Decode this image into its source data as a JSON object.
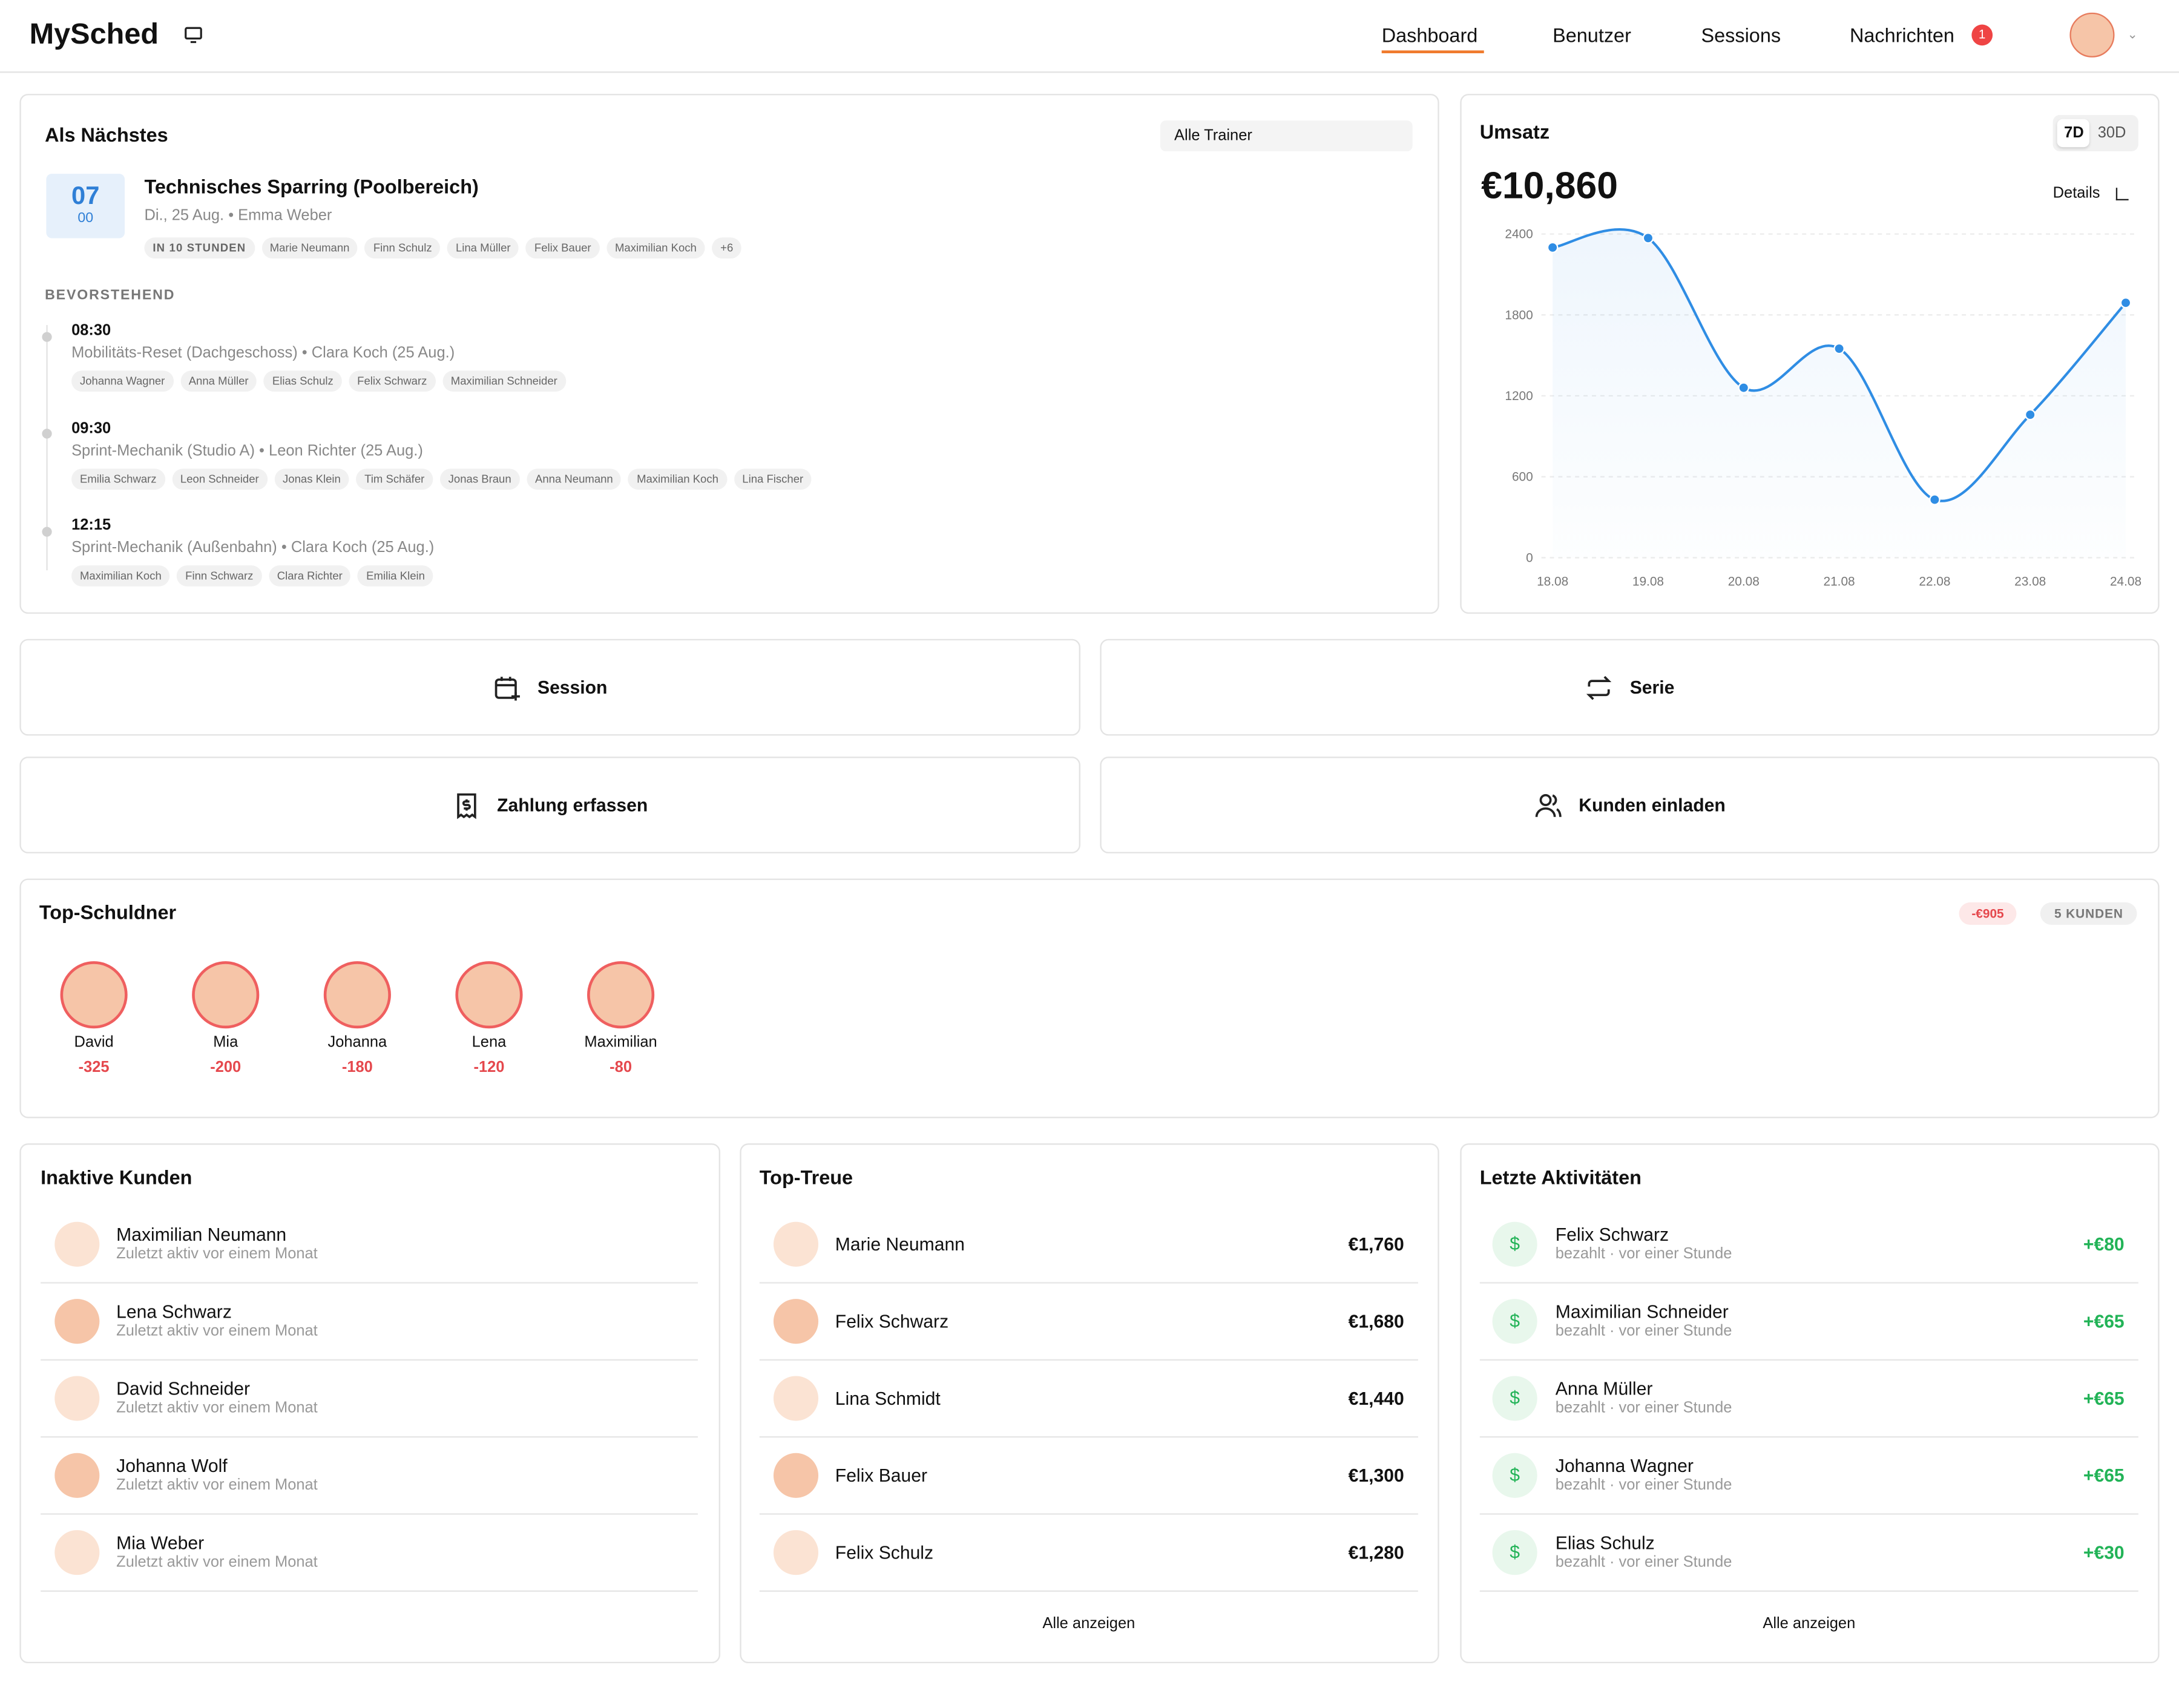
{
  "header": {
    "logo": "MySched",
    "nav": [
      "Dashboard",
      "Benutzer",
      "Sessions",
      "Nachrichten"
    ],
    "badge": "1"
  },
  "next": {
    "title": "Als Nächstes",
    "filter": "Alle Trainer",
    "day": "07",
    "month": "00",
    "session": "Technisches Sparring (Poolbereich)",
    "meta": "Di., 25 Aug. • Emma Weber",
    "when": "IN 10 STUNDEN",
    "tags": [
      "Marie Neumann",
      "Finn Schulz",
      "Lina Müller",
      "Felix Bauer",
      "Maximilian Koch",
      "+6"
    ],
    "upcoming_label": "BEVORSTEHEND",
    "upcoming": [
      {
        "time": "08:30",
        "desc": "Mobilitäts-Reset (Dachgeschoss) • Clara Koch (25 Aug.)",
        "tags": [
          "Johanna Wagner",
          "Anna Müller",
          "Elias Schulz",
          "Felix Schwarz",
          "Maximilian Schneider"
        ]
      },
      {
        "time": "09:30",
        "desc": "Sprint-Mechanik (Studio A) • Leon Richter (25 Aug.)",
        "tags": [
          "Emilia Schwarz",
          "Leon Schneider",
          "Jonas Klein",
          "Tim Schäfer",
          "Jonas Braun",
          "Anna Neumann",
          "Maximilian Koch",
          "Lina Fischer"
        ]
      },
      {
        "time": "12:15",
        "desc": "Sprint-Mechanik (Außenbahn) • Clara Koch (25 Aug.)",
        "tags": [
          "Maximilian Koch",
          "Finn Schwarz",
          "Clara Richter",
          "Emilia Klein"
        ]
      }
    ]
  },
  "revenue": {
    "ranges": [
      "7D",
      "30D"
    ],
    "total": "€10,860",
    "details": "Details"
  },
  "chart_data": {
    "type": "line",
    "title": "Umsatz",
    "categories": [
      "18.08",
      "19.08",
      "20.08",
      "21.08",
      "22.08",
      "23.08",
      "24.08"
    ],
    "values": [
      2300,
      2370,
      1260,
      1550,
      430,
      1060,
      1890
    ],
    "color": "#2f8de4",
    "ylim": [
      0,
      2400
    ],
    "yticks": [
      0,
      600,
      1200,
      1800,
      2400
    ],
    "grid": true
  },
  "actions": [
    "Session",
    "Serie",
    "Zahlung erfassen",
    "Kunden einladen"
  ],
  "debtors": {
    "title": "Top-Schuldner",
    "total": "-€905",
    "count": "5 KUNDEN",
    "people": [
      {
        "name": "David",
        "amount": -325
      },
      {
        "name": "Mia",
        "amount": -200
      },
      {
        "name": "Johanna",
        "amount": -180
      },
      {
        "name": "Lena",
        "amount": -120
      },
      {
        "name": "Maximilian",
        "amount": -80
      }
    ]
  },
  "inactive": {
    "title": "Inaktive Kunden",
    "rows": [
      {
        "name": "Maximilian Neumann",
        "status": "Zuletzt aktiv vor einem Monat"
      },
      {
        "name": "Lena Schwarz",
        "status": "Zuletzt aktiv vor einem Monat"
      },
      {
        "name": "David Schneider",
        "status": "Zuletzt aktiv vor einem Monat"
      },
      {
        "name": "Johanna Wolf",
        "status": "Zuletzt aktiv vor einem Monat"
      },
      {
        "name": "Mia Weber",
        "status": "Zuletzt aktiv vor einem Monat"
      }
    ]
  },
  "loyal": {
    "title": "Top-Treue",
    "rows": [
      {
        "name": "Marie Neumann",
        "amount": "€1,760"
      },
      {
        "name": "Felix Schwarz",
        "amount": "€1,680"
      },
      {
        "name": "Lina Schmidt",
        "amount": "€1,440"
      },
      {
        "name": "Felix Bauer",
        "amount": "€1,300"
      },
      {
        "name": "Felix Schulz",
        "amount": "€1,280"
      }
    ],
    "more": "Alle anzeigen"
  },
  "activity": {
    "title": "Letzte Aktivitäten",
    "rows": [
      {
        "name": "Felix Schwarz",
        "status": "bezahlt · vor einer Stunde",
        "amount": "+€80"
      },
      {
        "name": "Maximilian Schneider",
        "status": "bezahlt · vor einer Stunde",
        "amount": "+€65"
      },
      {
        "name": "Anna Müller",
        "status": "bezahlt · vor einer Stunde",
        "amount": "+€65"
      },
      {
        "name": "Johanna Wagner",
        "status": "bezahlt · vor einer Stunde",
        "amount": "+€65"
      },
      {
        "name": "Elias Schulz",
        "status": "bezahlt · vor einer Stunde",
        "amount": "+€30"
      }
    ],
    "more": "Alle anzeigen"
  }
}
